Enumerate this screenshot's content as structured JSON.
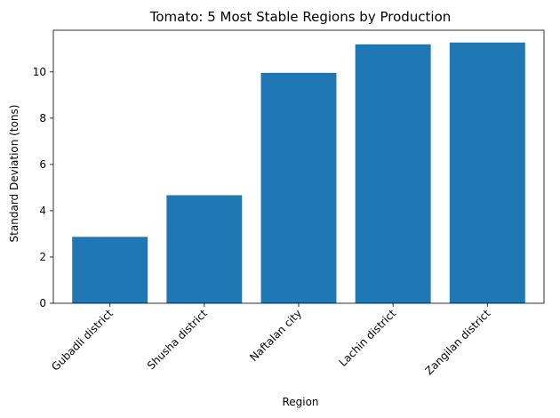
{
  "chart_data": {
    "type": "bar",
    "title": "Tomato: 5 Most Stable Regions by Production",
    "xlabel": "Region",
    "ylabel": "Standard Deviation (tons)",
    "categories": [
      "Gubadli district",
      "Shusha district",
      "Naftalan city",
      "Lachin district",
      "Zangilan district"
    ],
    "values": [
      2.87,
      4.67,
      9.96,
      11.19,
      11.27
    ],
    "ylim": [
      0,
      11.8
    ],
    "yticks": [
      0,
      2,
      4,
      6,
      8,
      10
    ],
    "grid": false,
    "bar_color": "#1f77b4"
  }
}
